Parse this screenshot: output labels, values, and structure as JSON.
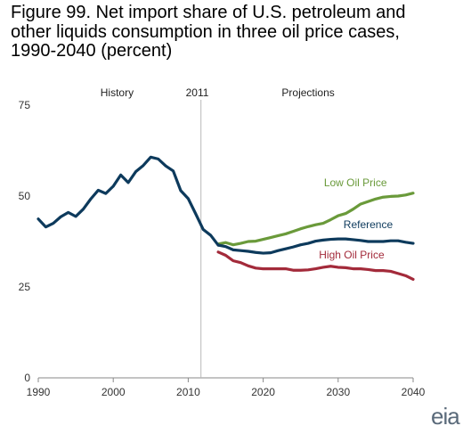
{
  "title_lines": [
    "Figure 99. Net import share of U.S. petroleum and",
    "other liquids consumption in three oil price cases,",
    "1990-2040 (percent)"
  ],
  "logo_text": "eia",
  "chart_data": {
    "type": "line",
    "title": "Figure 99. Net import share of U.S. petroleum and other liquids consumption in three oil price cases, 1990-2040 (percent)",
    "xlabel": "",
    "ylabel": "",
    "xlim": [
      1990,
      2040
    ],
    "ylim": [
      0,
      75
    ],
    "x_ticks": [
      1990,
      2000,
      2010,
      2020,
      2030,
      2040
    ],
    "y_ticks": [
      0,
      25,
      50,
      75
    ],
    "grid": false,
    "annotations": [
      {
        "text": "History",
        "x": 2000.5
      },
      {
        "text": "2011",
        "x": 2011.2
      },
      {
        "text": "Projections",
        "x": 2026
      }
    ],
    "divider_x": 2011.7,
    "series": [
      {
        "name": "History",
        "color": "#0d3a5c",
        "x": [
          1990,
          1991,
          1992,
          1993,
          1994,
          1995,
          1996,
          1997,
          1998,
          1999,
          2000,
          2001,
          2002,
          2003,
          2004,
          2005,
          2006,
          2007,
          2008,
          2009,
          2010,
          2011,
          2012,
          2013,
          2014
        ],
        "values": [
          43.7,
          41.5,
          42.5,
          44.3,
          45.5,
          44.4,
          46.4,
          49.2,
          51.6,
          50.7,
          52.7,
          55.8,
          53.7,
          56.7,
          58.4,
          60.7,
          60.2,
          58.3,
          56.9,
          51.5,
          49.3,
          45.1,
          40.8,
          39.2,
          36.5
        ]
      },
      {
        "name": "Reference",
        "color": "#0d3a5c",
        "label_pos": [
          2034,
          41.2
        ],
        "x": [
          2014,
          2015,
          2016,
          2017,
          2018,
          2019,
          2020,
          2021,
          2022,
          2023,
          2024,
          2025,
          2026,
          2027,
          2028,
          2029,
          2030,
          2031,
          2032,
          2033,
          2034,
          2035,
          2036,
          2037,
          2038,
          2039,
          2040
        ],
        "values": [
          36.5,
          36.1,
          35.2,
          35,
          34.8,
          34.5,
          34.3,
          34.4,
          35,
          35.5,
          36,
          36.6,
          37,
          37.6,
          37.9,
          38.1,
          38.2,
          38.2,
          38,
          37.8,
          37.5,
          37.5,
          37.5,
          37.7,
          37.7,
          37.3,
          37
        ]
      },
      {
        "name": "Low Oil Price",
        "color": "#6a9a3a",
        "label_pos": [
          2032.3,
          52.7
        ],
        "x": [
          2014,
          2015,
          2016,
          2017,
          2018,
          2019,
          2020,
          2021,
          2022,
          2023,
          2024,
          2025,
          2026,
          2027,
          2028,
          2029,
          2030,
          2031,
          2032,
          2033,
          2034,
          2035,
          2036,
          2037,
          2038,
          2039,
          2040
        ],
        "values": [
          36.8,
          37.2,
          36.6,
          37,
          37.5,
          37.6,
          38.1,
          38.6,
          39.1,
          39.6,
          40.3,
          41,
          41.6,
          42.1,
          42.5,
          43.5,
          44.6,
          45.2,
          46.4,
          47.8,
          48.5,
          49.2,
          49.7,
          49.9,
          50,
          50.3,
          50.8
        ]
      },
      {
        "name": "High Oil Price",
        "color": "#a32a3a",
        "label_pos": [
          2031.8,
          32.8
        ],
        "x": [
          2014,
          2015,
          2016,
          2017,
          2018,
          2019,
          2020,
          2021,
          2022,
          2023,
          2024,
          2025,
          2026,
          2027,
          2028,
          2029,
          2030,
          2031,
          2032,
          2033,
          2034,
          2035,
          2036,
          2037,
          2038,
          2039,
          2040
        ],
        "values": [
          34.6,
          33.7,
          32.2,
          31.7,
          30.8,
          30.2,
          30,
          30,
          30,
          30,
          29.6,
          29.6,
          29.7,
          30,
          30.4,
          30.7,
          30.4,
          30.3,
          30,
          30,
          29.8,
          29.5,
          29.5,
          29.3,
          28.7,
          28.1,
          27.1
        ]
      }
    ]
  }
}
